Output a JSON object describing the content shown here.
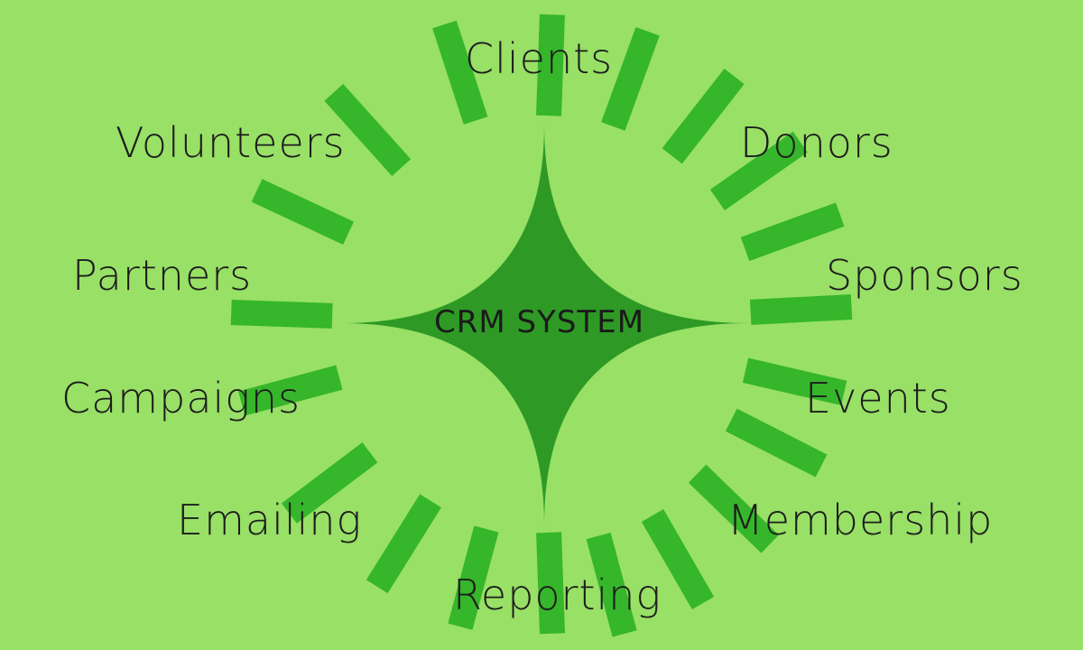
{
  "center": {
    "label": "CRM SYSTEM"
  },
  "nodes": [
    {
      "key": "clients",
      "label": "Clients"
    },
    {
      "key": "donors",
      "label": "Donors"
    },
    {
      "key": "sponsors",
      "label": "Sponsors"
    },
    {
      "key": "events",
      "label": "Events"
    },
    {
      "key": "membership",
      "label": "Membership"
    },
    {
      "key": "reporting",
      "label": "Reporting"
    },
    {
      "key": "emailing",
      "label": "Emailing"
    },
    {
      "key": "campaigns",
      "label": "Campaigns"
    },
    {
      "key": "partners",
      "label": "Partners"
    },
    {
      "key": "volunteers",
      "label": "Volunteers"
    }
  ],
  "colors": {
    "background": "#98e066",
    "star": "#2e9a25",
    "rays": "#36b62a",
    "text": "#1c1c1c"
  }
}
